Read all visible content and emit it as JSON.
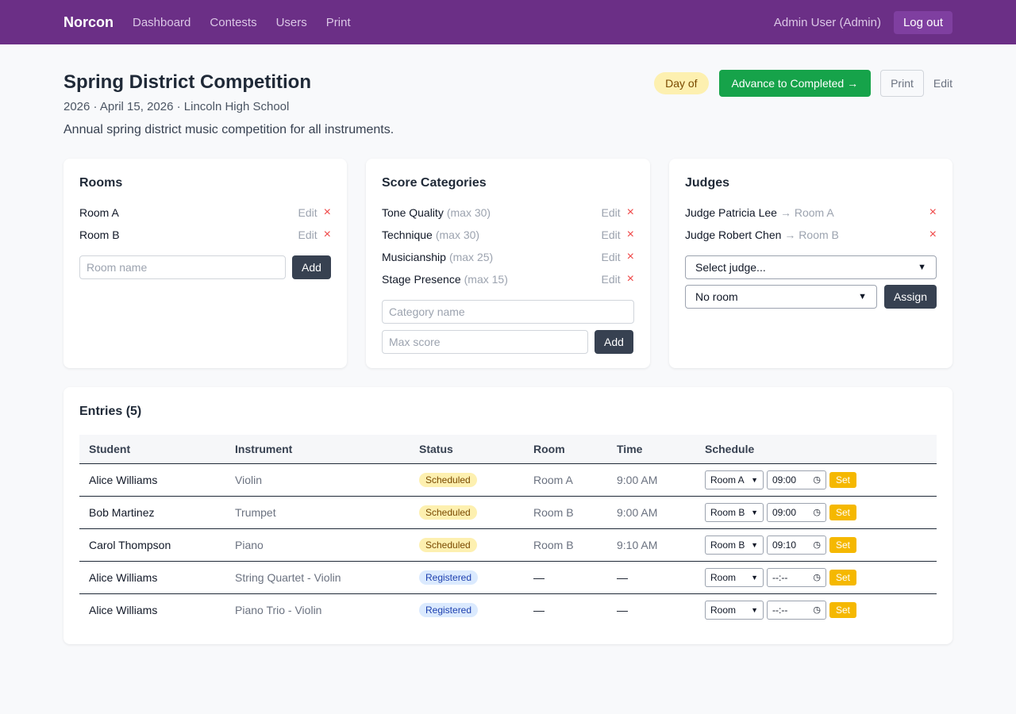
{
  "nav": {
    "brand": "Norcon",
    "links": [
      "Dashboard",
      "Contests",
      "Users",
      "Print"
    ],
    "user": "Admin User (Admin)",
    "logout": "Log out"
  },
  "contest": {
    "title": "Spring District Competition",
    "meta": "2026 · April 15, 2026 · Lincoln High School",
    "description": "Annual spring district music competition for all instruments.",
    "status": "Day of",
    "advance_label": "Advance to Completed →",
    "print_label": "Print",
    "edit_label": "Edit"
  },
  "rooms": {
    "title": "Rooms",
    "items": [
      {
        "name": "Room A"
      },
      {
        "name": "Room B"
      }
    ],
    "edit_label": "Edit",
    "remove_icon": "×",
    "input_placeholder": "Room name",
    "add_label": "Add"
  },
  "categories": {
    "title": "Score Categories",
    "items": [
      {
        "name": "Tone Quality",
        "max": "(max 30)"
      },
      {
        "name": "Technique",
        "max": "(max 30)"
      },
      {
        "name": "Musicianship",
        "max": "(max 25)"
      },
      {
        "name": "Stage Presence",
        "max": "(max 15)"
      }
    ],
    "edit_label": "Edit",
    "remove_icon": "×",
    "name_placeholder": "Category name",
    "max_placeholder": "Max score",
    "add_label": "Add"
  },
  "judges": {
    "title": "Judges",
    "items": [
      {
        "name": "Judge Patricia Lee",
        "room": "→ Room A"
      },
      {
        "name": "Judge Robert Chen",
        "room": "→ Room B"
      }
    ],
    "remove_icon": "×",
    "judge_select": "Select judge...",
    "room_select": "No room",
    "assign_label": "Assign"
  },
  "entries": {
    "title": "Entries (5)",
    "columns": [
      "Student",
      "Instrument",
      "Status",
      "Room",
      "Time",
      "Schedule"
    ],
    "rows": [
      {
        "student": "Alice Williams",
        "instrument": "Violin",
        "status": "Scheduled",
        "status_type": "scheduled",
        "room": "Room A",
        "time": "9:00 AM",
        "sched_room": "Room A",
        "sched_time": "09:00"
      },
      {
        "student": "Bob Martinez",
        "instrument": "Trumpet",
        "status": "Scheduled",
        "status_type": "scheduled",
        "room": "Room B",
        "time": "9:00 AM",
        "sched_room": "Room B",
        "sched_time": "09:00"
      },
      {
        "student": "Carol Thompson",
        "instrument": "Piano",
        "status": "Scheduled",
        "status_type": "scheduled",
        "room": "Room B",
        "time": "9:10 AM",
        "sched_room": "Room B",
        "sched_time": "09:10"
      },
      {
        "student": "Alice Williams",
        "instrument": "String Quartet - Violin",
        "status": "Registered",
        "status_type": "registered",
        "room": "—",
        "time": "—",
        "sched_room": "Room",
        "sched_time": "--:--"
      },
      {
        "student": "Alice Williams",
        "instrument": "Piano Trio - Violin",
        "status": "Registered",
        "status_type": "registered",
        "room": "—",
        "time": "—",
        "sched_room": "Room",
        "sched_time": "--:--"
      }
    ],
    "set_label": "Set"
  },
  "colors": {
    "navbar": "#6b2f86",
    "advance": "#16a34a",
    "set_button": "#f5b800",
    "remove": "#ef4444"
  }
}
